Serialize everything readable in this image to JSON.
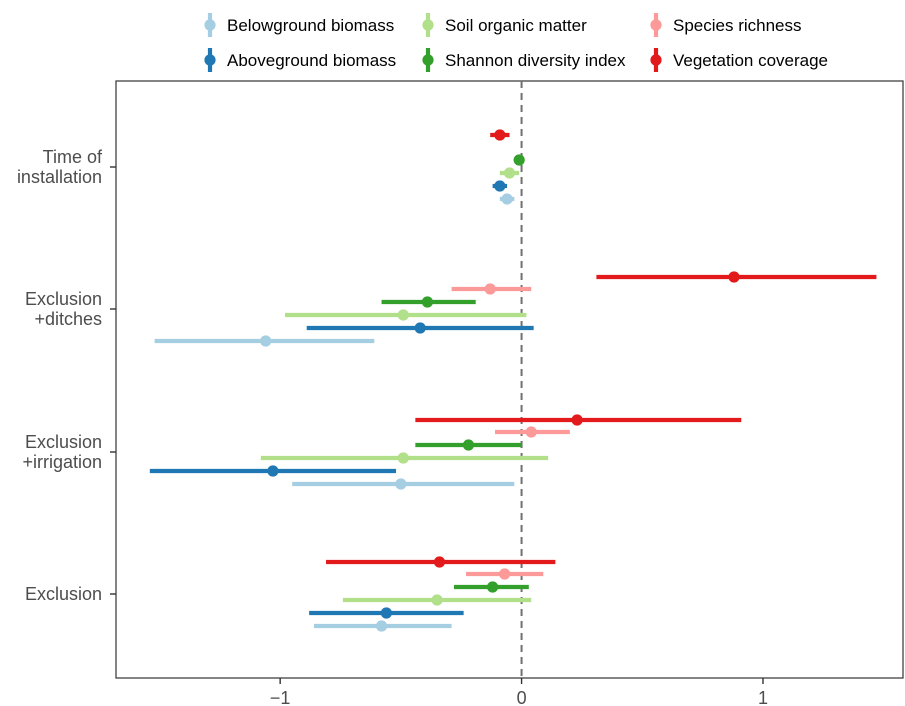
{
  "chart_data": {
    "type": "scatter",
    "subtype": "forest-plot-points-with-interval-bars",
    "title": "",
    "xlabel": "",
    "ylabel": "",
    "xlim": [
      -1.68,
      1.58
    ],
    "xticks": [
      -1,
      0,
      1
    ],
    "xtick_labels": [
      "−1",
      "0",
      "1"
    ],
    "reference_line": {
      "x": 0,
      "style": "dashed",
      "color": "#707070"
    },
    "grid": false,
    "legend_position": "top",
    "categories": [
      {
        "key": "time",
        "lines": [
          "Time of",
          "installation"
        ]
      },
      {
        "key": "ditches",
        "lines": [
          "Exclusion",
          "+ditches"
        ]
      },
      {
        "key": "irrigation",
        "lines": [
          "Exclusion",
          "+irrigation"
        ]
      },
      {
        "key": "exclusion",
        "lines": [
          "Exclusion"
        ]
      }
    ],
    "series": [
      {
        "name": "Belowground biomass",
        "color": "#a6cee3",
        "values": [
          {
            "category": "time",
            "estimate": -0.06,
            "low": -0.09,
            "high": -0.03
          },
          {
            "category": "ditches",
            "estimate": -1.06,
            "low": -1.52,
            "high": -0.61
          },
          {
            "category": "irrigation",
            "estimate": -0.5,
            "low": -0.95,
            "high": -0.03
          },
          {
            "category": "exclusion",
            "estimate": -0.58,
            "low": -0.86,
            "high": -0.29
          }
        ]
      },
      {
        "name": "Aboveground biomass",
        "color": "#1f78b4",
        "values": [
          {
            "category": "time",
            "estimate": -0.09,
            "low": -0.12,
            "high": -0.06
          },
          {
            "category": "ditches",
            "estimate": -0.42,
            "low": -0.89,
            "high": 0.05
          },
          {
            "category": "irrigation",
            "estimate": -1.03,
            "low": -1.54,
            "high": -0.52
          },
          {
            "category": "exclusion",
            "estimate": -0.56,
            "low": -0.88,
            "high": -0.24
          }
        ]
      },
      {
        "name": "Soil organic matter",
        "color": "#b2df8a",
        "values": [
          {
            "category": "time",
            "estimate": -0.05,
            "low": -0.09,
            "high": -0.01
          },
          {
            "category": "ditches",
            "estimate": -0.49,
            "low": -0.98,
            "high": 0.02
          },
          {
            "category": "irrigation",
            "estimate": -0.49,
            "low": -1.08,
            "high": 0.11
          },
          {
            "category": "exclusion",
            "estimate": -0.35,
            "low": -0.74,
            "high": 0.04
          }
        ]
      },
      {
        "name": "Shannon diversity index",
        "color": "#33a02c",
        "values": [
          {
            "category": "time",
            "estimate": -0.01,
            "low": -0.03,
            "high": 0.01
          },
          {
            "category": "ditches",
            "estimate": -0.39,
            "low": -0.58,
            "high": -0.19
          },
          {
            "category": "irrigation",
            "estimate": -0.22,
            "low": -0.44,
            "high": 0.0
          },
          {
            "category": "exclusion",
            "estimate": -0.12,
            "low": -0.28,
            "high": 0.03
          }
        ]
      },
      {
        "name": "Species richness",
        "color": "#fb9a99",
        "values": [
          {
            "category": "time",
            "estimate": null,
            "low": null,
            "high": null
          },
          {
            "category": "ditches",
            "estimate": -0.13,
            "low": -0.29,
            "high": 0.04
          },
          {
            "category": "irrigation",
            "estimate": 0.04,
            "low": -0.11,
            "high": 0.2
          },
          {
            "category": "exclusion",
            "estimate": -0.07,
            "low": -0.23,
            "high": 0.09
          }
        ]
      },
      {
        "name": "Vegetation coverage",
        "color": "#e31a1c",
        "values": [
          {
            "category": "time",
            "estimate": -0.09,
            "low": -0.13,
            "high": -0.05
          },
          {
            "category": "ditches",
            "estimate": 0.88,
            "low": 0.31,
            "high": 1.47
          },
          {
            "category": "irrigation",
            "estimate": 0.23,
            "low": -0.44,
            "high": 0.91
          },
          {
            "category": "exclusion",
            "estimate": -0.34,
            "low": -0.81,
            "high": 0.14
          }
        ]
      }
    ]
  }
}
